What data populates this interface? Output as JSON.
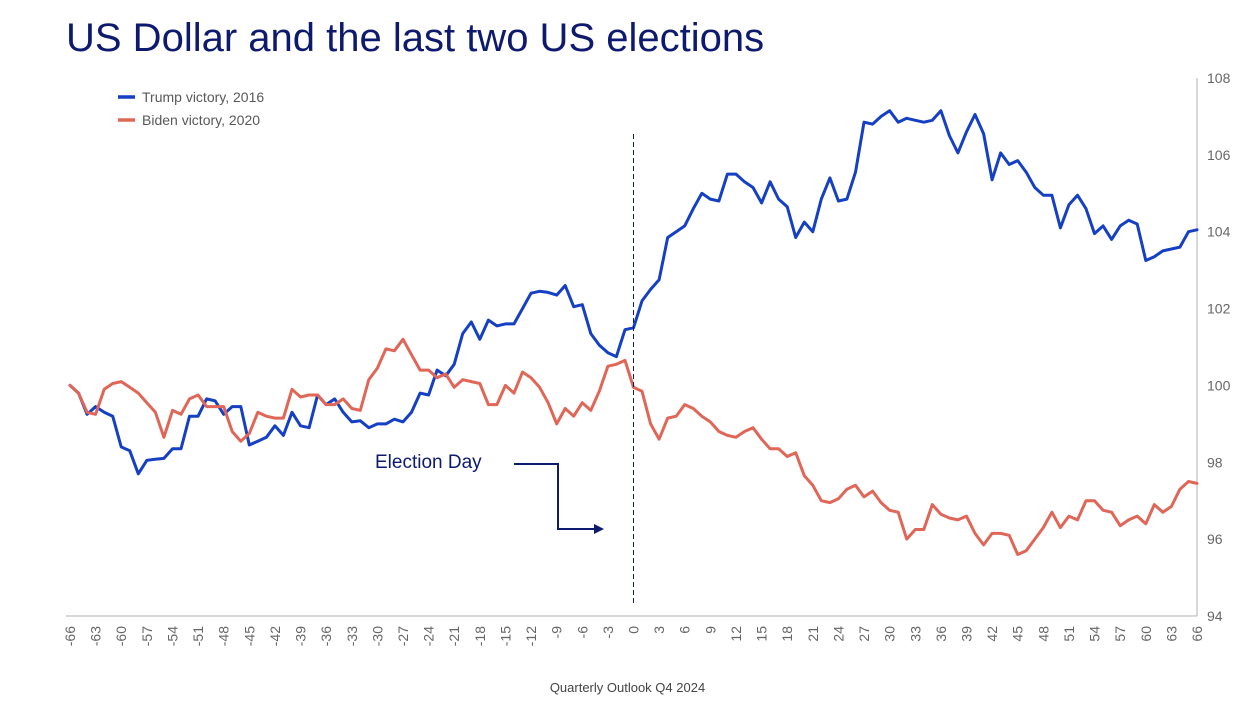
{
  "title": "US Dollar and the last two US elections",
  "footer": "Quarterly Outlook Q4 2024",
  "chart_data": {
    "type": "line",
    "title": "US Dollar and the last two US elections",
    "xlim": [
      -66,
      66
    ],
    "ylim": [
      94,
      108
    ],
    "x_ticks": [
      -66,
      -63,
      -60,
      -57,
      -54,
      -51,
      -48,
      -45,
      -42,
      -39,
      -36,
      -33,
      -30,
      -27,
      -24,
      -21,
      -18,
      -15,
      -12,
      -9,
      -6,
      -3,
      0,
      3,
      6,
      9,
      12,
      15,
      18,
      21,
      24,
      27,
      30,
      33,
      36,
      39,
      42,
      45,
      48,
      51,
      54,
      57,
      60,
      63,
      66
    ],
    "y_ticks": [
      94,
      96,
      98,
      100,
      102,
      104,
      106,
      108
    ],
    "y_axis_side": "right",
    "legend_position": "top-left",
    "grid": false,
    "annotation": {
      "text": "Election Day",
      "x": 0
    },
    "series": [
      {
        "name": "Trump victory, 2016",
        "color": "#1540c4",
        "points": [
          [
            -66,
            100.0
          ],
          [
            -65,
            99.8
          ],
          [
            -64,
            99.25
          ],
          [
            -63,
            99.45
          ],
          [
            -62,
            99.3
          ],
          [
            -61,
            99.2
          ],
          [
            -60,
            98.4
          ],
          [
            -59,
            98.3
          ],
          [
            -58,
            97.7
          ],
          [
            -57,
            98.05
          ],
          [
            -56,
            98.08
          ],
          [
            -55,
            98.1
          ],
          [
            -54,
            98.35
          ],
          [
            -53,
            98.35
          ],
          [
            -52,
            99.2
          ],
          [
            -51,
            99.2
          ],
          [
            -50,
            99.65
          ],
          [
            -49,
            99.6
          ],
          [
            -48,
            99.25
          ],
          [
            -47,
            99.45
          ],
          [
            -46,
            99.45
          ],
          [
            -45,
            98.45
          ],
          [
            -44,
            98.55
          ],
          [
            -43,
            98.65
          ],
          [
            -42,
            98.95
          ],
          [
            -41,
            98.7
          ],
          [
            -40,
            99.3
          ],
          [
            -39,
            98.95
          ],
          [
            -38,
            98.9
          ],
          [
            -37,
            99.75
          ],
          [
            -36,
            99.5
          ],
          [
            -35,
            99.65
          ],
          [
            -34,
            99.3
          ],
          [
            -33,
            99.05
          ],
          [
            -32,
            99.08
          ],
          [
            -31,
            98.9
          ],
          [
            -30,
            99.0
          ],
          [
            -29,
            99.0
          ],
          [
            -28,
            99.12
          ],
          [
            -27,
            99.05
          ],
          [
            -26,
            99.3
          ],
          [
            -25,
            99.8
          ],
          [
            -24,
            99.75
          ],
          [
            -23,
            100.4
          ],
          [
            -22,
            100.25
          ],
          [
            -21,
            100.55
          ],
          [
            -20,
            101.35
          ],
          [
            -19,
            101.65
          ],
          [
            -18,
            101.2
          ],
          [
            -17,
            101.7
          ],
          [
            -16,
            101.55
          ],
          [
            -15,
            101.6
          ],
          [
            -14,
            101.6
          ],
          [
            -13,
            102.0
          ],
          [
            -12,
            102.4
          ],
          [
            -11,
            102.45
          ],
          [
            -10,
            102.42
          ],
          [
            -9,
            102.35
          ],
          [
            -8,
            102.6
          ],
          [
            -7,
            102.05
          ],
          [
            -6,
            102.1
          ],
          [
            -5,
            101.35
          ],
          [
            -4,
            101.05
          ],
          [
            -3,
            100.85
          ],
          [
            -2,
            100.75
          ],
          [
            -1,
            101.45
          ],
          [
            0,
            101.5
          ],
          [
            1,
            102.2
          ],
          [
            2,
            102.5
          ],
          [
            3,
            102.75
          ],
          [
            4,
            103.85
          ],
          [
            5,
            104.0
          ],
          [
            6,
            104.15
          ],
          [
            7,
            104.6
          ],
          [
            8,
            105.0
          ],
          [
            9,
            104.85
          ],
          [
            10,
            104.8
          ],
          [
            11,
            105.5
          ],
          [
            12,
            105.5
          ],
          [
            13,
            105.3
          ],
          [
            14,
            105.15
          ],
          [
            15,
            104.75
          ],
          [
            16,
            105.3
          ],
          [
            17,
            104.85
          ],
          [
            18,
            104.65
          ],
          [
            19,
            103.85
          ],
          [
            20,
            104.25
          ],
          [
            21,
            104.0
          ],
          [
            22,
            104.85
          ],
          [
            23,
            105.4
          ],
          [
            24,
            104.8
          ],
          [
            25,
            104.85
          ],
          [
            26,
            105.55
          ],
          [
            27,
            106.85
          ],
          [
            28,
            106.8
          ],
          [
            29,
            107.0
          ],
          [
            30,
            107.15
          ],
          [
            31,
            106.85
          ],
          [
            32,
            106.95
          ],
          [
            33,
            106.9
          ],
          [
            34,
            106.85
          ],
          [
            35,
            106.9
          ],
          [
            36,
            107.15
          ],
          [
            37,
            106.5
          ],
          [
            38,
            106.05
          ],
          [
            39,
            106.6
          ],
          [
            40,
            107.05
          ],
          [
            41,
            106.55
          ],
          [
            42,
            105.35
          ],
          [
            43,
            106.05
          ],
          [
            44,
            105.75
          ],
          [
            45,
            105.85
          ],
          [
            46,
            105.55
          ],
          [
            47,
            105.15
          ],
          [
            48,
            104.95
          ],
          [
            49,
            104.95
          ],
          [
            50,
            104.1
          ],
          [
            51,
            104.7
          ],
          [
            52,
            104.95
          ],
          [
            53,
            104.6
          ],
          [
            54,
            103.95
          ],
          [
            55,
            104.15
          ],
          [
            56,
            103.8
          ],
          [
            57,
            104.15
          ],
          [
            58,
            104.3
          ],
          [
            59,
            104.2
          ],
          [
            60,
            103.25
          ],
          [
            61,
            103.35
          ],
          [
            62,
            103.5
          ],
          [
            63,
            103.55
          ],
          [
            64,
            103.6
          ],
          [
            65,
            104.0
          ],
          [
            66,
            104.05
          ]
        ]
      },
      {
        "name": "Biden victory, 2020",
        "color": "#e06657",
        "points": [
          [
            -66,
            100.0
          ],
          [
            -65,
            99.8
          ],
          [
            -64,
            99.3
          ],
          [
            -63,
            99.25
          ],
          [
            -62,
            99.9
          ],
          [
            -61,
            100.05
          ],
          [
            -60,
            100.1
          ],
          [
            -59,
            99.95
          ],
          [
            -58,
            99.8
          ],
          [
            -57,
            99.55
          ],
          [
            -56,
            99.3
          ],
          [
            -55,
            98.65
          ],
          [
            -54,
            99.35
          ],
          [
            -53,
            99.25
          ],
          [
            -52,
            99.65
          ],
          [
            -51,
            99.75
          ],
          [
            -50,
            99.45
          ],
          [
            -49,
            99.45
          ],
          [
            -48,
            99.45
          ],
          [
            -47,
            98.8
          ],
          [
            -46,
            98.55
          ],
          [
            -45,
            98.75
          ],
          [
            -44,
            99.3
          ],
          [
            -43,
            99.2
          ],
          [
            -42,
            99.15
          ],
          [
            -41,
            99.15
          ],
          [
            -40,
            99.9
          ],
          [
            -39,
            99.7
          ],
          [
            -38,
            99.75
          ],
          [
            -37,
            99.75
          ],
          [
            -36,
            99.5
          ],
          [
            -35,
            99.5
          ],
          [
            -34,
            99.65
          ],
          [
            -33,
            99.4
          ],
          [
            -32,
            99.35
          ],
          [
            -31,
            100.15
          ],
          [
            -30,
            100.45
          ],
          [
            -29,
            100.95
          ],
          [
            -28,
            100.9
          ],
          [
            -27,
            101.2
          ],
          [
            -26,
            100.8
          ],
          [
            -25,
            100.4
          ],
          [
            -24,
            100.4
          ],
          [
            -23,
            100.2
          ],
          [
            -22,
            100.3
          ],
          [
            -21,
            99.95
          ],
          [
            -20,
            100.15
          ],
          [
            -19,
            100.1
          ],
          [
            -18,
            100.05
          ],
          [
            -17,
            99.5
          ],
          [
            -16,
            99.5
          ],
          [
            -15,
            100.0
          ],
          [
            -14,
            99.8
          ],
          [
            -13,
            100.35
          ],
          [
            -12,
            100.2
          ],
          [
            -11,
            99.95
          ],
          [
            -10,
            99.55
          ],
          [
            -9,
            99.0
          ],
          [
            -8,
            99.4
          ],
          [
            -7,
            99.2
          ],
          [
            -6,
            99.55
          ],
          [
            -5,
            99.35
          ],
          [
            -4,
            99.85
          ],
          [
            -3,
            100.5
          ],
          [
            -2,
            100.55
          ],
          [
            -1,
            100.65
          ],
          [
            0,
            99.95
          ],
          [
            1,
            99.85
          ],
          [
            2,
            99.0
          ],
          [
            3,
            98.6
          ],
          [
            4,
            99.15
          ],
          [
            5,
            99.2
          ],
          [
            6,
            99.5
          ],
          [
            7,
            99.4
          ],
          [
            8,
            99.2
          ],
          [
            9,
            99.05
          ],
          [
            10,
            98.8
          ],
          [
            11,
            98.7
          ],
          [
            12,
            98.65
          ],
          [
            13,
            98.8
          ],
          [
            14,
            98.9
          ],
          [
            15,
            98.6
          ],
          [
            16,
            98.35
          ],
          [
            17,
            98.35
          ],
          [
            18,
            98.15
          ],
          [
            19,
            98.25
          ],
          [
            20,
            97.65
          ],
          [
            21,
            97.4
          ],
          [
            22,
            97.0
          ],
          [
            23,
            96.95
          ],
          [
            24,
            97.05
          ],
          [
            25,
            97.3
          ],
          [
            26,
            97.4
          ],
          [
            27,
            97.1
          ],
          [
            28,
            97.25
          ],
          [
            29,
            96.95
          ],
          [
            30,
            96.75
          ],
          [
            31,
            96.7
          ],
          [
            32,
            96.0
          ],
          [
            33,
            96.25
          ],
          [
            34,
            96.25
          ],
          [
            35,
            96.9
          ],
          [
            36,
            96.65
          ],
          [
            37,
            96.55
          ],
          [
            38,
            96.5
          ],
          [
            39,
            96.6
          ],
          [
            40,
            96.15
          ],
          [
            41,
            95.85
          ],
          [
            42,
            96.15
          ],
          [
            43,
            96.15
          ],
          [
            44,
            96.1
          ],
          [
            45,
            95.6
          ],
          [
            46,
            95.7
          ],
          [
            47,
            96.0
          ],
          [
            48,
            96.3
          ],
          [
            49,
            96.7
          ],
          [
            50,
            96.3
          ],
          [
            51,
            96.6
          ],
          [
            52,
            96.5
          ],
          [
            53,
            97.0
          ],
          [
            54,
            97.0
          ],
          [
            55,
            96.75
          ],
          [
            56,
            96.7
          ],
          [
            57,
            96.35
          ],
          [
            58,
            96.5
          ],
          [
            59,
            96.6
          ],
          [
            60,
            96.4
          ],
          [
            61,
            96.9
          ],
          [
            62,
            96.7
          ],
          [
            63,
            96.85
          ],
          [
            64,
            97.3
          ],
          [
            65,
            97.5
          ],
          [
            66,
            97.45
          ]
        ]
      }
    ]
  }
}
